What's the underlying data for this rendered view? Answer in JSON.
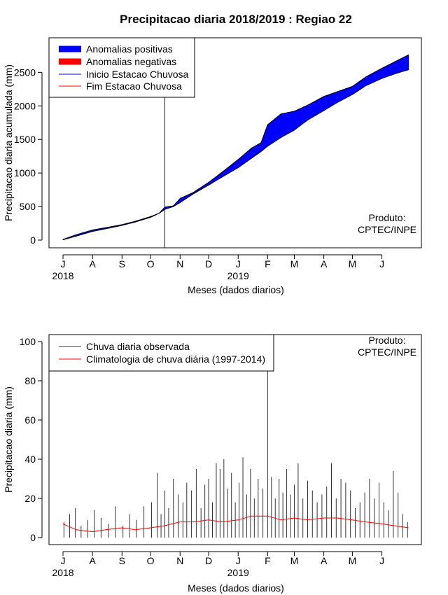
{
  "chart_data": [
    {
      "type": "area",
      "title": "Precipitacao diaria 2018/2019 : Regiao 22",
      "ylabel": "Precipitacao diaria acumulada (mm)",
      "xlabel": "Meses (dados diarios)",
      "x_ticks": [
        "J",
        "A",
        "S",
        "O",
        "N",
        "D",
        "J",
        "F",
        "M",
        "A",
        "M",
        "J"
      ],
      "years": [
        "2018",
        "2019"
      ],
      "ylim": [
        0,
        2900
      ],
      "y_ticks": [
        0,
        500,
        1000,
        1500,
        2000,
        2500
      ],
      "rainy_season_start": "2018-10-16",
      "legend": [
        {
          "label": "Anomalias positivas",
          "color": "#0000ff",
          "style": "thick"
        },
        {
          "label": "Anomalias negativas",
          "color": "#ff0000",
          "style": "thick"
        },
        {
          "label": "Inicio Estacao Chuvosa",
          "color": "#0000ff",
          "style": "thin"
        },
        {
          "label": "Fim Estacao Chuvosa",
          "color": "#ff0000",
          "style": "thin"
        }
      ],
      "legend_position": "top-left",
      "annotation": [
        "Produto:",
        "CPTEC/INPE"
      ],
      "series": [
        {
          "name": "observado",
          "dates": [
            "2018-07-01",
            "2018-07-15",
            "2018-08-01",
            "2018-08-15",
            "2018-09-01",
            "2018-09-15",
            "2018-10-01",
            "2018-10-10",
            "2018-10-16",
            "2018-10-25",
            "2018-11-01",
            "2018-11-15",
            "2018-12-01",
            "2018-12-15",
            "2019-01-01",
            "2019-01-15",
            "2019-01-25",
            "2019-02-01",
            "2019-02-15",
            "2019-03-01",
            "2019-03-15",
            "2019-04-01",
            "2019-04-15",
            "2019-05-01",
            "2019-05-15",
            "2019-06-01",
            "2019-06-15",
            "2019-06-29"
          ],
          "values": [
            10,
            80,
            150,
            185,
            230,
            280,
            350,
            400,
            490,
            510,
            620,
            710,
            860,
            1010,
            1200,
            1370,
            1450,
            1720,
            1880,
            1920,
            2010,
            2140,
            2210,
            2290,
            2430,
            2560,
            2660,
            2760
          ]
        },
        {
          "name": "climatologia",
          "dates": [
            "2018-07-01",
            "2018-07-15",
            "2018-08-01",
            "2018-08-15",
            "2018-09-01",
            "2018-09-15",
            "2018-10-01",
            "2018-10-10",
            "2018-10-16",
            "2018-10-25",
            "2018-11-01",
            "2018-11-15",
            "2018-12-01",
            "2018-12-15",
            "2019-01-01",
            "2019-01-15",
            "2019-01-25",
            "2019-02-01",
            "2019-02-15",
            "2019-03-01",
            "2019-03-15",
            "2019-04-01",
            "2019-04-15",
            "2019-05-01",
            "2019-05-15",
            "2019-06-01",
            "2019-06-15",
            "2019-06-29"
          ],
          "values": [
            5,
            60,
            130,
            170,
            220,
            270,
            340,
            400,
            460,
            500,
            560,
            690,
            820,
            940,
            1080,
            1220,
            1320,
            1400,
            1530,
            1640,
            1790,
            1930,
            2050,
            2170,
            2300,
            2410,
            2480,
            2540
          ]
        }
      ]
    },
    {
      "type": "bar",
      "ylabel": "Precipitacao diaria (mm)",
      "xlabel": "Meses (dados diarios)",
      "x_ticks": [
        "J",
        "A",
        "S",
        "O",
        "N",
        "D",
        "J",
        "F",
        "M",
        "A",
        "M",
        "J"
      ],
      "years": [
        "2018",
        "2019"
      ],
      "ylim": [
        0,
        100
      ],
      "y_ticks": [
        0,
        20,
        40,
        60,
        80,
        100
      ],
      "legend": [
        {
          "label": "Chuva diaria observada",
          "color": "#333333"
        },
        {
          "label": "Climatologia de chuva diária (1997-2014)",
          "color": "#ff0000"
        }
      ],
      "legend_position": "top-left",
      "annotation": [
        "Produto:",
        "CPTEC/INPE"
      ],
      "series": [
        {
          "name": "Chuva diaria observada",
          "dates": [
            "2018-07-02",
            "2018-07-08",
            "2018-07-14",
            "2018-07-20",
            "2018-07-27",
            "2018-08-03",
            "2018-08-10",
            "2018-08-18",
            "2018-08-25",
            "2018-09-02",
            "2018-09-09",
            "2018-09-16",
            "2018-09-24",
            "2018-10-02",
            "2018-10-08",
            "2018-10-12",
            "2018-10-16",
            "2018-10-20",
            "2018-10-25",
            "2018-10-30",
            "2018-11-04",
            "2018-11-08",
            "2018-11-13",
            "2018-11-18",
            "2018-11-23",
            "2018-11-27",
            "2018-12-01",
            "2018-12-05",
            "2018-12-09",
            "2018-12-13",
            "2018-12-17",
            "2018-12-21",
            "2018-12-25",
            "2018-12-29",
            "2019-01-02",
            "2019-01-06",
            "2019-01-10",
            "2019-01-14",
            "2019-01-18",
            "2019-01-22",
            "2019-01-27",
            "2019-02-01",
            "2019-02-05",
            "2019-02-09",
            "2019-02-13",
            "2019-02-17",
            "2019-02-21",
            "2019-02-25",
            "2019-03-01",
            "2019-03-05",
            "2019-03-10",
            "2019-03-15",
            "2019-03-20",
            "2019-03-25",
            "2019-03-30",
            "2019-04-04",
            "2019-04-09",
            "2019-04-14",
            "2019-04-19",
            "2019-04-24",
            "2019-04-29",
            "2019-05-04",
            "2019-05-09",
            "2019-05-14",
            "2019-05-19",
            "2019-05-24",
            "2019-05-29",
            "2019-06-03",
            "2019-06-08",
            "2019-06-13",
            "2019-06-18",
            "2019-06-23",
            "2019-06-28"
          ],
          "values": [
            8,
            12,
            15,
            6,
            9,
            14,
            10,
            7,
            16,
            6,
            12,
            9,
            16,
            18,
            33,
            12,
            24,
            15,
            30,
            22,
            18,
            28,
            24,
            35,
            15,
            27,
            30,
            18,
            38,
            35,
            40,
            25,
            33,
            18,
            28,
            41,
            22,
            35,
            20,
            30,
            25,
            85,
            31,
            20,
            30,
            23,
            35,
            22,
            27,
            38,
            20,
            29,
            24,
            18,
            22,
            26,
            38,
            20,
            30,
            28,
            24,
            15,
            18,
            23,
            30,
            20,
            28,
            18,
            14,
            34,
            23,
            12,
            8
          ]
        },
        {
          "name": "Climatologia de chuva diária (1997-2014)",
          "dates": [
            "2018-07-01",
            "2018-07-15",
            "2018-08-01",
            "2018-08-15",
            "2018-09-01",
            "2018-09-15",
            "2018-10-01",
            "2018-10-15",
            "2018-11-01",
            "2018-11-15",
            "2018-12-01",
            "2018-12-15",
            "2019-01-01",
            "2019-01-15",
            "2019-02-01",
            "2019-02-15",
            "2019-03-01",
            "2019-03-15",
            "2019-04-01",
            "2019-04-15",
            "2019-05-01",
            "2019-05-15",
            "2019-06-01",
            "2019-06-15",
            "2019-06-29"
          ],
          "values": [
            7,
            4,
            3,
            4,
            5,
            4,
            5,
            6,
            8,
            8,
            9,
            8,
            9,
            11,
            11,
            9,
            10,
            9,
            10,
            10,
            9,
            8,
            7,
            6,
            5
          ]
        }
      ]
    }
  ]
}
